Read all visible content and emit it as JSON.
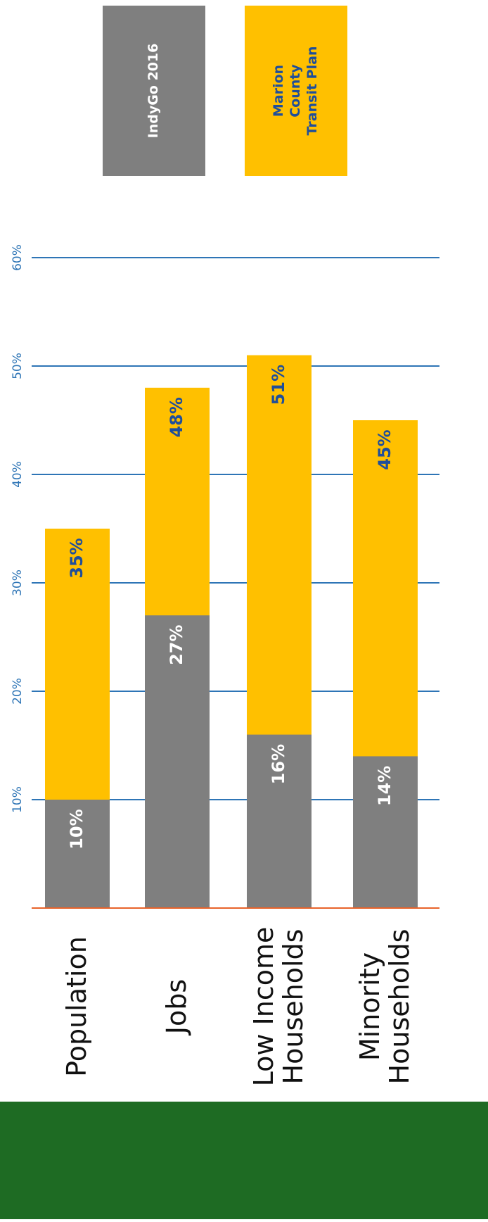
{
  "chart_data": {
    "type": "bar",
    "orientation": "rotated",
    "categories": [
      "Population",
      "Jobs",
      "Low Income Households",
      "Minority Households"
    ],
    "series": [
      {
        "name": "Marion County Transit Plan",
        "color": "#ffc000",
        "label_color": "#1f4e9a",
        "values": [
          35,
          48,
          51,
          45
        ],
        "value_labels": [
          "35%",
          "48%",
          "51%",
          "45%"
        ]
      },
      {
        "name": "IndyGo 2016",
        "color": "#7f7f7f",
        "label_color": "#ffffff",
        "values": [
          10,
          27,
          16,
          14
        ],
        "value_labels": [
          "10%",
          "27%",
          "16%",
          "14%"
        ]
      }
    ],
    "ylim": [
      0,
      60
    ],
    "yticks": [
      {
        "value": 10,
        "label": "10%"
      },
      {
        "value": 20,
        "label": "20%"
      },
      {
        "value": 30,
        "label": "30%"
      },
      {
        "value": 40,
        "label": "40%"
      },
      {
        "value": 50,
        "label": "50%"
      },
      {
        "value": 60,
        "label": "60%"
      }
    ],
    "grid": true
  }
}
